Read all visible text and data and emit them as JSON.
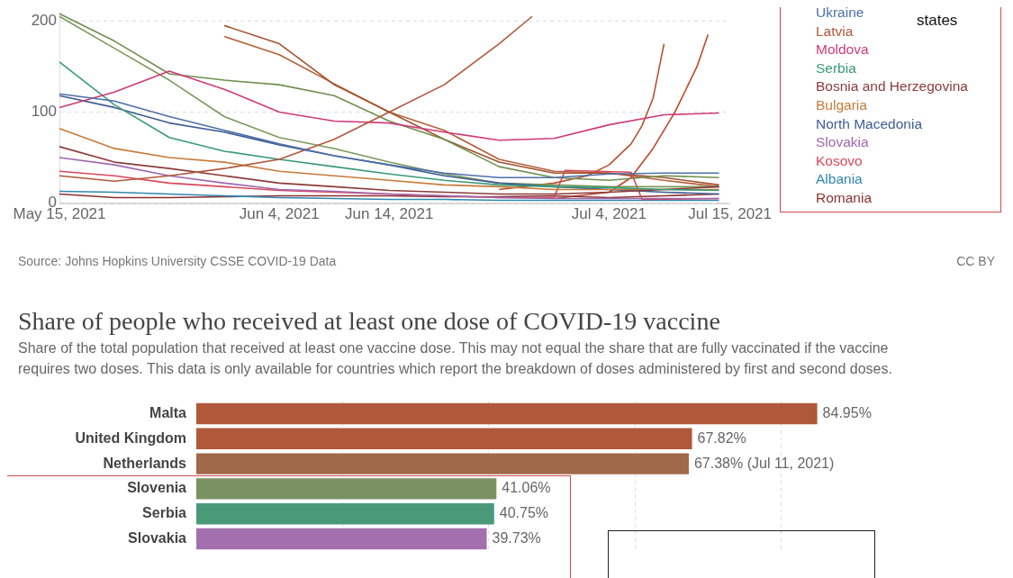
{
  "chart_data": [
    {
      "type": "line",
      "x": [
        "2021-05-15",
        "2021-05-20",
        "2021-05-25",
        "2021-05-30",
        "2021-06-04",
        "2021-06-09",
        "2021-06-14",
        "2021-06-19",
        "2021-06-24",
        "2021-06-29",
        "2021-07-04",
        "2021-07-09",
        "2021-07-14"
      ],
      "series": [
        {
          "name": "Ukraine",
          "color": "#4f6fa8",
          "values": [
            120,
            112,
            95,
            80,
            65,
            52,
            42,
            33,
            28,
            28,
            32,
            33,
            33
          ]
        },
        {
          "name": "Latvia",
          "color": "#b0583a",
          "x": [
            "2021-05-15",
            "2021-05-20",
            "2021-05-25",
            "2021-05-30",
            "2021-06-04",
            "2021-06-09",
            "2021-06-14",
            "2021-06-19",
            "2021-06-24",
            "2021-06-27"
          ],
          "values": [
            30,
            24,
            30,
            38,
            48,
            70,
            100,
            130,
            175,
            205
          ]
        },
        {
          "name": "Moldova",
          "color": "#d03a78",
          "values": [
            105,
            122,
            145,
            125,
            100,
            90,
            88,
            78,
            69,
            71,
            86,
            97,
            99
          ]
        },
        {
          "name": "Serbia",
          "color": "#3a9a78",
          "values": [
            155,
            108,
            72,
            57,
            48,
            40,
            32,
            25,
            20,
            18,
            17,
            15,
            14
          ]
        },
        {
          "name": "Bosnia and Herzegovina",
          "color": "#8c3b3b",
          "values": [
            62,
            45,
            38,
            30,
            22,
            18,
            14,
            12,
            10,
            10,
            12,
            15,
            18
          ]
        },
        {
          "name": "Bulgaria",
          "color": "#c77b3a",
          "values": [
            82,
            60,
            50,
            45,
            35,
            30,
            25,
            20,
            18,
            15,
            15,
            15,
            15
          ]
        },
        {
          "name": "North Macedonia",
          "color": "#3e5c94",
          "values": [
            118,
            105,
            88,
            78,
            64,
            52,
            42,
            30,
            22,
            18,
            15,
            12,
            10
          ]
        },
        {
          "name": "Slovakia",
          "color": "#a066b0",
          "values": [
            50,
            42,
            30,
            22,
            15,
            13,
            10,
            8,
            6,
            5,
            5,
            5,
            5
          ]
        },
        {
          "name": "Kosovo",
          "color": "#d9485a",
          "x": [
            "2021-05-15",
            "2021-05-20",
            "2021-05-25",
            "2021-05-30",
            "2021-06-04",
            "2021-06-09",
            "2021-06-14",
            "2021-06-19",
            "2021-06-24",
            "2021-06-29",
            "2021-06-30",
            "2021-07-06",
            "2021-07-07",
            "2021-07-14"
          ],
          "values": [
            35,
            30,
            22,
            18,
            14,
            12,
            10,
            8,
            6,
            6,
            36,
            34,
            4,
            5
          ]
        },
        {
          "name": "Albania",
          "color": "#3088b0",
          "values": [
            13,
            12,
            10,
            8,
            6,
            5,
            4,
            4,
            3,
            3,
            3,
            3,
            3
          ]
        },
        {
          "name": "Romania",
          "color": "#8a3030",
          "values": [
            10,
            6,
            6,
            7,
            8,
            8,
            8,
            7,
            7,
            8,
            6,
            8,
            10
          ]
        },
        {
          "color": "#6f8f4f",
          "values": [
            208,
            178,
            142,
            135,
            130,
            118,
            90,
            70,
            40,
            28,
            25,
            30,
            28
          ]
        },
        {
          "color": "#7a9a5a",
          "values": [
            205,
            170,
            135,
            95,
            72,
            60,
            45,
            32,
            22,
            20,
            18,
            18,
            18
          ]
        },
        {
          "color": "#a0522d",
          "values": [
            null,
            null,
            null,
            195,
            175,
            130,
            100,
            70,
            45,
            33,
            33,
            28,
            20
          ]
        },
        {
          "color": "#b5603a",
          "values": [
            null,
            null,
            null,
            183,
            163,
            131,
            100,
            80,
            48,
            35,
            33,
            25,
            18
          ]
        },
        {
          "color": "#b5522f",
          "x": [
            "2021-06-24",
            "2021-06-29",
            "2021-07-02",
            "2021-07-04",
            "2021-07-06",
            "2021-07-07",
            "2021-07-08",
            "2021-07-09"
          ],
          "values": [
            15,
            22,
            30,
            42,
            65,
            85,
            115,
            175
          ]
        },
        {
          "color": "#c0452a",
          "x": [
            "2021-06-29",
            "2021-07-04",
            "2021-07-06",
            "2021-07-08",
            "2021-07-10",
            "2021-07-12",
            "2021-07-13"
          ],
          "values": [
            5,
            12,
            28,
            60,
            100,
            150,
            185
          ]
        }
      ],
      "xlim": [
        "2021-05-15",
        "2021-07-15"
      ],
      "xticks": [
        {
          "value": "2021-05-15",
          "label": "May 15, 2021"
        },
        {
          "value": "2021-06-04",
          "label": "Jun 4, 2021"
        },
        {
          "value": "2021-06-14",
          "label": "Jun 14, 2021"
        },
        {
          "value": "2021-07-04",
          "label": "Jul 4, 2021"
        },
        {
          "value": "2021-07-15",
          "label": "Jul 15, 2021"
        }
      ],
      "ylim": [
        0,
        210
      ],
      "yticks": [
        0,
        100,
        200
      ],
      "grid": "y",
      "legend": "right",
      "marker": "none",
      "line_style": "solid",
      "annotations": [
        "states",
        "Source: Johns Hopkins University CSSE COVID-19 Data",
        "CC BY"
      ]
    },
    {
      "type": "bar",
      "orientation": "horizontal",
      "title": "Share of people who received at least one dose of COVID-19 vaccine",
      "subtitle": "Share of the total population that received at least one vaccine dose. This may not equal the share that are fully vaccinated if the vaccine requires two doses. This data is only available for countries which report the breakdown of doses administered by first and second doses.",
      "categories": [
        "Malta",
        "United Kingdom",
        "Netherlands",
        "Slovenia",
        "Serbia",
        "Slovakia"
      ],
      "values": [
        84.95,
        67.82,
        67.38,
        41.06,
        40.75,
        39.73
      ],
      "colors": [
        "#b0583a",
        "#b0583a",
        "#a0694a",
        "#7a9162",
        "#4a9a7a",
        "#a36fae"
      ],
      "value_labels": [
        "84.95%",
        "67.82%",
        "67.38% (Jul 11, 2021)",
        "41.06%",
        "40.75%",
        "39.73%"
      ],
      "xlim": [
        0,
        85
      ],
      "xticks": [
        {
          "value": 20,
          "label": null
        },
        {
          "value": 40,
          "label": null
        },
        {
          "value": 60,
          "label": null
        },
        {
          "value": 80,
          "label": null
        }
      ],
      "grid": "x"
    }
  ]
}
